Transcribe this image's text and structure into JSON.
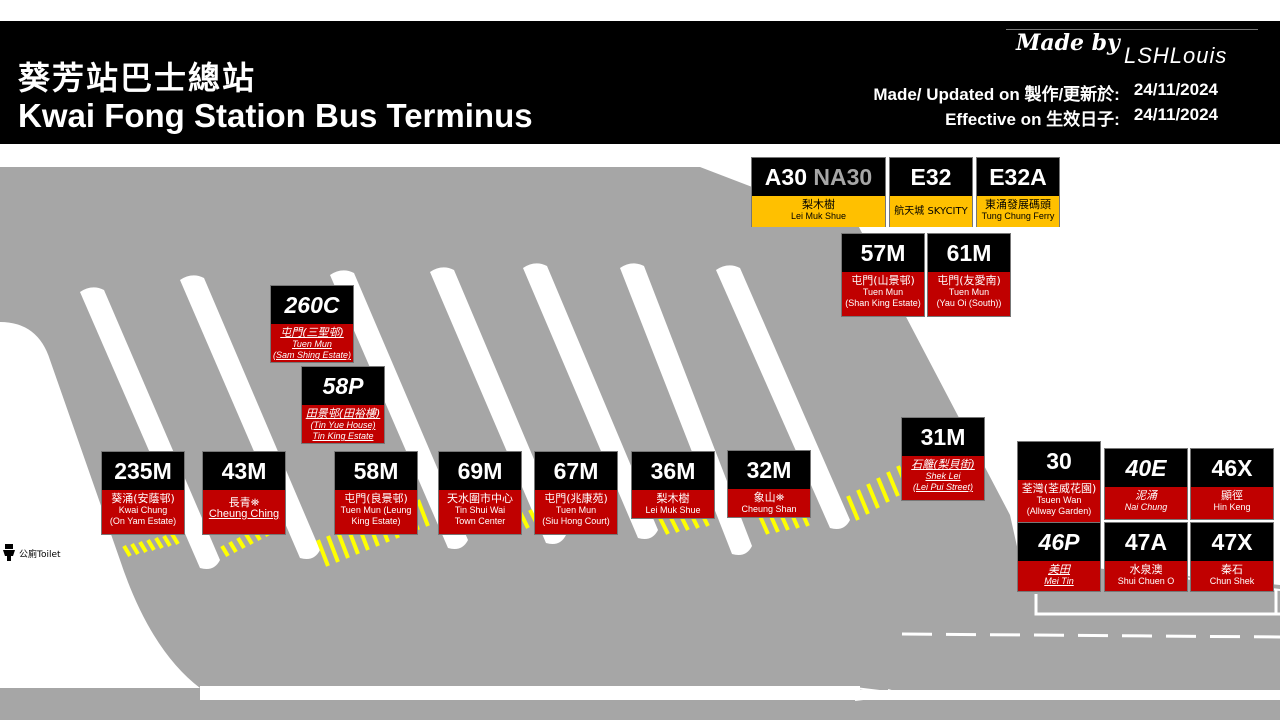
{
  "header": {
    "title_zh": "葵芳站巴士總站",
    "title_en": "Kwai Fong Station Bus Terminus",
    "made_by": "Made by",
    "author": "LSHLouis",
    "updated_label": "Made/ Updated on 製作/更新於:",
    "updated_date": "24/11/2024",
    "effective_label": "Effective on 生效日子:",
    "effective_date": "24/11/2024"
  },
  "toilet": {
    "label": "公廁Toilet",
    "icon": "toilet-icon"
  },
  "colors": {
    "road": "#a6a6a6",
    "card_number": "#000000",
    "card_red": "#c00000",
    "card_yellow": "#ffc000",
    "crossing": "#ffff00"
  },
  "routes": {
    "A30": {
      "num": "A30",
      "num_alt": "NA30",
      "zh": "梨木樹",
      "en": "Lei Muk Shue"
    },
    "E32": {
      "num": "E32",
      "zh": "航天城 SKYCITY",
      "en": ""
    },
    "E32A": {
      "num": "E32A",
      "zh": "東涌發展碼頭",
      "en": "Tung Chung Ferry"
    },
    "57M": {
      "num": "57M",
      "zh": "屯門(山景邨)",
      "en": "Tuen Mun",
      "en2": "(Shan King Estate)"
    },
    "61M": {
      "num": "61M",
      "zh": "屯門(友愛南)",
      "en": "Tuen Mun",
      "en2": "(Yau Oi (South))"
    },
    "260C": {
      "num": "260C",
      "zh": "屯門(三聖邨)",
      "en": "Tuen Mun",
      "en2": "(Sam Shing Estate)"
    },
    "58P": {
      "num": "58P",
      "zh": "田景邨(田裕樓)",
      "en": "(Tin Yue House)",
      "en2": "Tin King Estate"
    },
    "235M": {
      "num": "235M",
      "zh": "葵涌(安蔭邨)",
      "en": "Kwai Chung",
      "en2": "(On Yam Estate)"
    },
    "43M": {
      "num": "43M",
      "zh": "長青⛯",
      "en": "Cheung Ching"
    },
    "58M": {
      "num": "58M",
      "zh": "屯門(良景邨)",
      "en": "Tuen Mun (Leung",
      "en2": "King Estate)"
    },
    "69M": {
      "num": "69M",
      "zh": "天水圍市中心",
      "en": "Tin Shui Wai",
      "en2": "Town Center"
    },
    "67M": {
      "num": "67M",
      "zh": "屯門(兆康苑)",
      "en": "Tuen Mun",
      "en2": "(Siu Hong Court)"
    },
    "36M": {
      "num": "36M",
      "zh": "梨木樹",
      "en": "Lei Muk Shue"
    },
    "32M": {
      "num": "32M",
      "zh": "象山⛯",
      "en": "Cheung Shan"
    },
    "31M": {
      "num": "31M",
      "zh": "石籬(梨貝街)",
      "en": "Shek Lei",
      "en2": "(Lei Pui Street)"
    },
    "30": {
      "num": "30",
      "zh": "荃灣(荃威花園)",
      "en": "Tsuen Wan",
      "en2": "(Allway Garden)"
    },
    "40E": {
      "num": "40E",
      "zh": "泥涌",
      "en": "Nai Chung"
    },
    "46X": {
      "num": "46X",
      "zh": "顯徑",
      "en": "Hin Keng"
    },
    "46P": {
      "num": "46P",
      "zh": "美田",
      "en": "Mei Tin"
    },
    "47A": {
      "num": "47A",
      "zh": "水泉澳",
      "en": "Shui Chuen O"
    },
    "47X": {
      "num": "47X",
      "zh": "秦石",
      "en": "Chun Shek"
    }
  }
}
